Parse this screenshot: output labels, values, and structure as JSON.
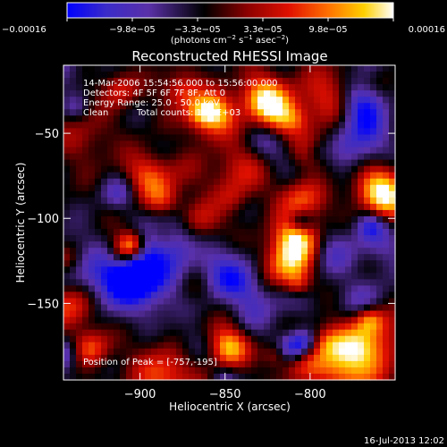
{
  "chart_data": {
    "type": "heatmap",
    "title": "Reconstructed RHESSI Image",
    "xlabel": "Heliocentric X (arcsec)",
    "ylabel": "Heliocentric Y (arcsec)",
    "xlim": [
      -945,
      -750
    ],
    "ylim": [
      -195,
      -10
    ],
    "x_ticks": [
      -900,
      -850,
      -800
    ],
    "x_tick_labels": [
      "−900",
      "−850",
      "−800"
    ],
    "y_ticks": [
      -50,
      -100,
      -150
    ],
    "y_tick_labels": [
      "−50",
      "−100",
      "−150"
    ],
    "colorbar": {
      "range": [
        -0.00016,
        0.00016
      ],
      "tick_labels": [
        "−0.00016",
        "−9.8e−05",
        "−3.3e−05",
        "3.3e−05",
        "9.8e−05",
        "0.00016"
      ],
      "unit_prefix": "(photons cm",
      "unit_sup1": "−2",
      "unit_mid": " s",
      "unit_sup2": "−1",
      "unit_mid2": " asec",
      "unit_sup3": "−2",
      "unit_suffix": ")",
      "colors": [
        "#0000ff",
        "#3a2bc8",
        "#5a30a8",
        "#000000",
        "#8a0000",
        "#e01000",
        "#ff7000",
        "#ffd000",
        "#ffffff"
      ]
    },
    "annotations": {
      "time_range": "14-Mar-2006 15:54:56.000 to 15:56:00.000",
      "detectors": "Detectors: 4F 5F 6F 7F 8F, Att 0",
      "energy_range": "Energy Range: 25.0 - 50.0 keV",
      "method": "Clean",
      "total_counts": "Total counts: 1.19E+03",
      "peak": "Position of Peak = [-757,-195]"
    },
    "peak_position": [
      -757,
      -195
    ],
    "grid": false
  },
  "footer": {
    "timestamp": "16-Jul-2013 12:02"
  }
}
